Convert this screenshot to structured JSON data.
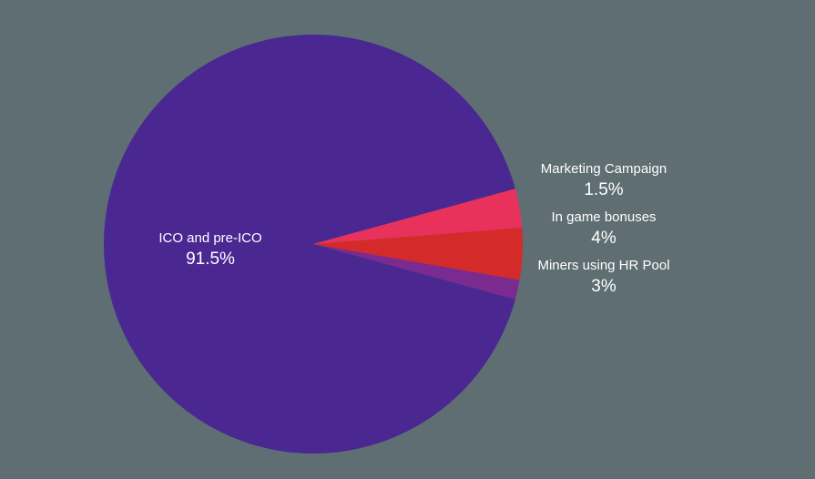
{
  "background_color": "#5f6e72",
  "chart_data": {
    "type": "pie",
    "slices": [
      {
        "label": "ICO and pre-ICO",
        "value": 91.5,
        "value_label": "91.5%",
        "color": "#4a2791"
      },
      {
        "label": "Marketing Campaign",
        "value": 1.5,
        "value_label": "1.5%",
        "color": "#7b2a8f"
      },
      {
        "label": "In game bonuses",
        "value": 4,
        "value_label": "4%",
        "color": "#d42a2a"
      },
      {
        "label": "Miners using HR Pool",
        "value": 3,
        "value_label": "3%",
        "color": "#e8325c"
      }
    ]
  }
}
